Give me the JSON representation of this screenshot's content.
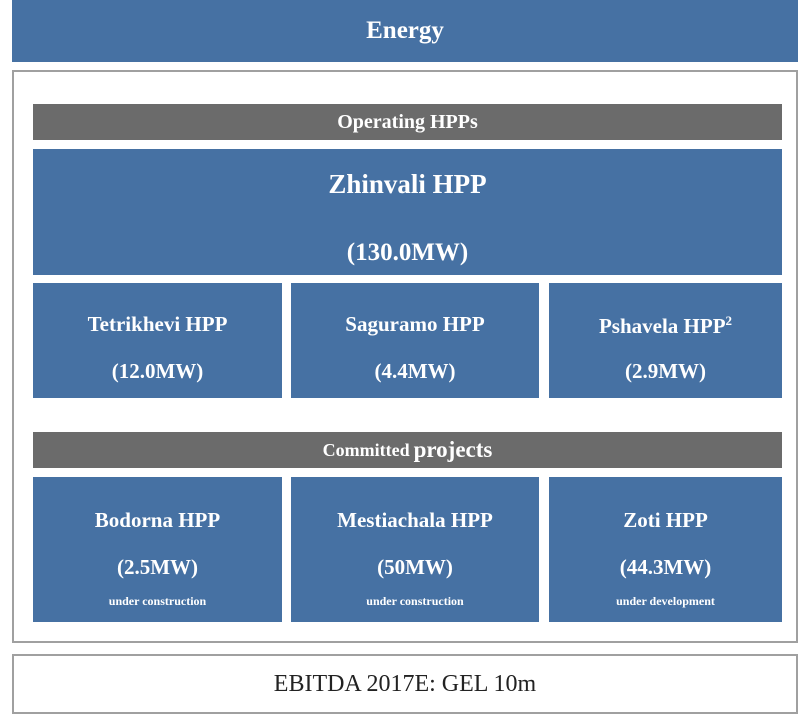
{
  "header": {
    "title": "Energy"
  },
  "operating": {
    "title": "Operating HPPs",
    "plants": [
      {
        "name": "Zhinvali HPP",
        "capacity": "(130.0MW)"
      },
      {
        "name": "Tetrikhevi HPP",
        "capacity": "(12.0MW)"
      },
      {
        "name": "Saguramo HPP",
        "capacity": "(4.4MW)"
      },
      {
        "name": "Pshavela HPP",
        "footnote": "2",
        "capacity": "(2.9MW)"
      }
    ]
  },
  "committed": {
    "title": [
      "Committed",
      "projects"
    ],
    "projects": [
      {
        "name": "Bodorna HPP",
        "capacity": "(2.5MW)",
        "status": "under construction"
      },
      {
        "name": "Mestiachala HPP",
        "capacity": "(50MW)",
        "status": "under construction"
      },
      {
        "name": "Zoti HPP",
        "capacity": "(44.3MW)",
        "status": "under development"
      }
    ]
  },
  "footer": {
    "text": "EBITDA 2017E: GEL 10m"
  }
}
